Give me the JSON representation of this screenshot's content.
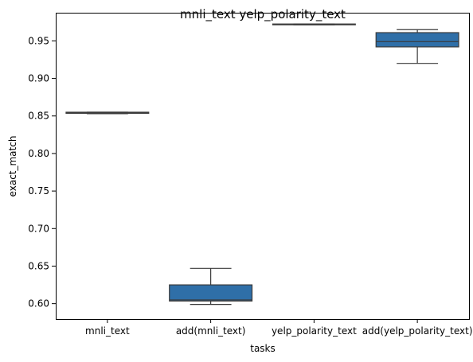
{
  "chart_data": {
    "type": "box",
    "title": "mnli_text yelp_polarity_text",
    "xlabel": "tasks",
    "ylabel": "exact_match",
    "ylim": [
      0.5795,
      0.9875
    ],
    "yticks": [
      "0.60",
      "0.65",
      "0.70",
      "0.75",
      "0.80",
      "0.85",
      "0.90",
      "0.95"
    ],
    "grid": false,
    "legend": "none",
    "box_color": "#2f6fa8",
    "line_color": "#3a3a3a",
    "categories": [
      "mnli_text",
      "add(mnli_text)",
      "yelp_polarity_text",
      "add(yelp_polarity_text)"
    ],
    "boxes": [
      {
        "category": "mnli_text",
        "whisker_low": 0.853,
        "q1": 0.8535,
        "median": 0.854,
        "q3": 0.855,
        "whisker_high": 0.855
      },
      {
        "category": "add(mnli_text)",
        "whisker_low": 0.599,
        "q1": 0.6035,
        "median": 0.605,
        "q3": 0.625,
        "whisker_high": 0.647
      },
      {
        "category": "yelp_polarity_text",
        "whisker_low": 0.9715,
        "q1": 0.9715,
        "median": 0.972,
        "q3": 0.9725,
        "whisker_high": 0.9725
      },
      {
        "category": "add(yelp_polarity_text)",
        "whisker_low": 0.92,
        "q1": 0.942,
        "median": 0.949,
        "q3": 0.961,
        "whisker_high": 0.965
      }
    ]
  }
}
